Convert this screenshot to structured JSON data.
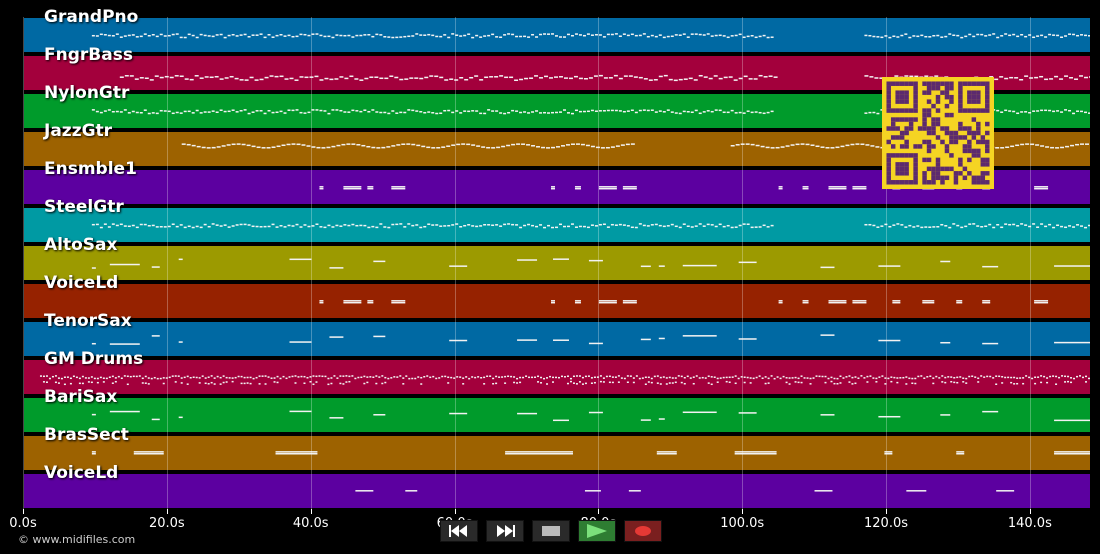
{
  "colors": {
    "palette": [
      "#0069a3",
      "#a3003c",
      "#009b2b",
      "#9d6200",
      "#5c00a0",
      "#009aa3",
      "#9c9a00",
      "#962200"
    ]
  },
  "tracks": [
    {
      "name": "GrandPno",
      "color": "#0069a3",
      "pattern": "dense"
    },
    {
      "name": "FngrBass",
      "color": "#a3003c",
      "pattern": "bassline"
    },
    {
      "name": "NylonGtr",
      "color": "#009b2b",
      "pattern": "dense"
    },
    {
      "name": "JazzGtr",
      "color": "#9d6200",
      "pattern": "wavy"
    },
    {
      "name": "Ensmble1",
      "color": "#5c00a0",
      "pattern": "sparse"
    },
    {
      "name": "SteelGtr",
      "color": "#009aa3",
      "pattern": "dense"
    },
    {
      "name": "AltoSax",
      "color": "#9c9a00",
      "pattern": "melody"
    },
    {
      "name": "VoiceLd",
      "color": "#962200",
      "pattern": "sparse"
    },
    {
      "name": "TenorSax",
      "color": "#0069a3",
      "pattern": "melody"
    },
    {
      "name": "GM Drums",
      "color": "#a3003c",
      "pattern": "drums"
    },
    {
      "name": "BariSax",
      "color": "#009b2b",
      "pattern": "melody"
    },
    {
      "name": "BrasSect",
      "color": "#9d6200",
      "pattern": "brass"
    },
    {
      "name": "VoiceLd",
      "color": "#5c00a0",
      "pattern": "vocal"
    }
  ],
  "timeline": {
    "duration_s": 148.5,
    "ticks": [
      {
        "t": 0,
        "label": "0.0s"
      },
      {
        "t": 20,
        "label": "20.0s"
      },
      {
        "t": 40,
        "label": "40.0s"
      },
      {
        "t": 60,
        "label": "60.0s"
      },
      {
        "t": 80,
        "label": "80.0s"
      },
      {
        "t": 100,
        "label": "100.0s"
      },
      {
        "t": 120,
        "label": "120.0s"
      },
      {
        "t": 140,
        "label": "140.0s"
      }
    ]
  },
  "copyright": "© www.midifiles.com",
  "controls": [
    {
      "name": "rewind-button",
      "icon": "rewind-icon"
    },
    {
      "name": "fast-forward-button",
      "icon": "fast-forward-icon"
    },
    {
      "name": "stop-button",
      "icon": "stop-icon"
    },
    {
      "name": "play-button",
      "icon": "play-icon"
    },
    {
      "name": "record-button",
      "icon": "record-icon"
    }
  ],
  "qr_code": {
    "icon": "qr-code-icon",
    "color": "#f5d423",
    "fg": "#5c2a6e"
  }
}
